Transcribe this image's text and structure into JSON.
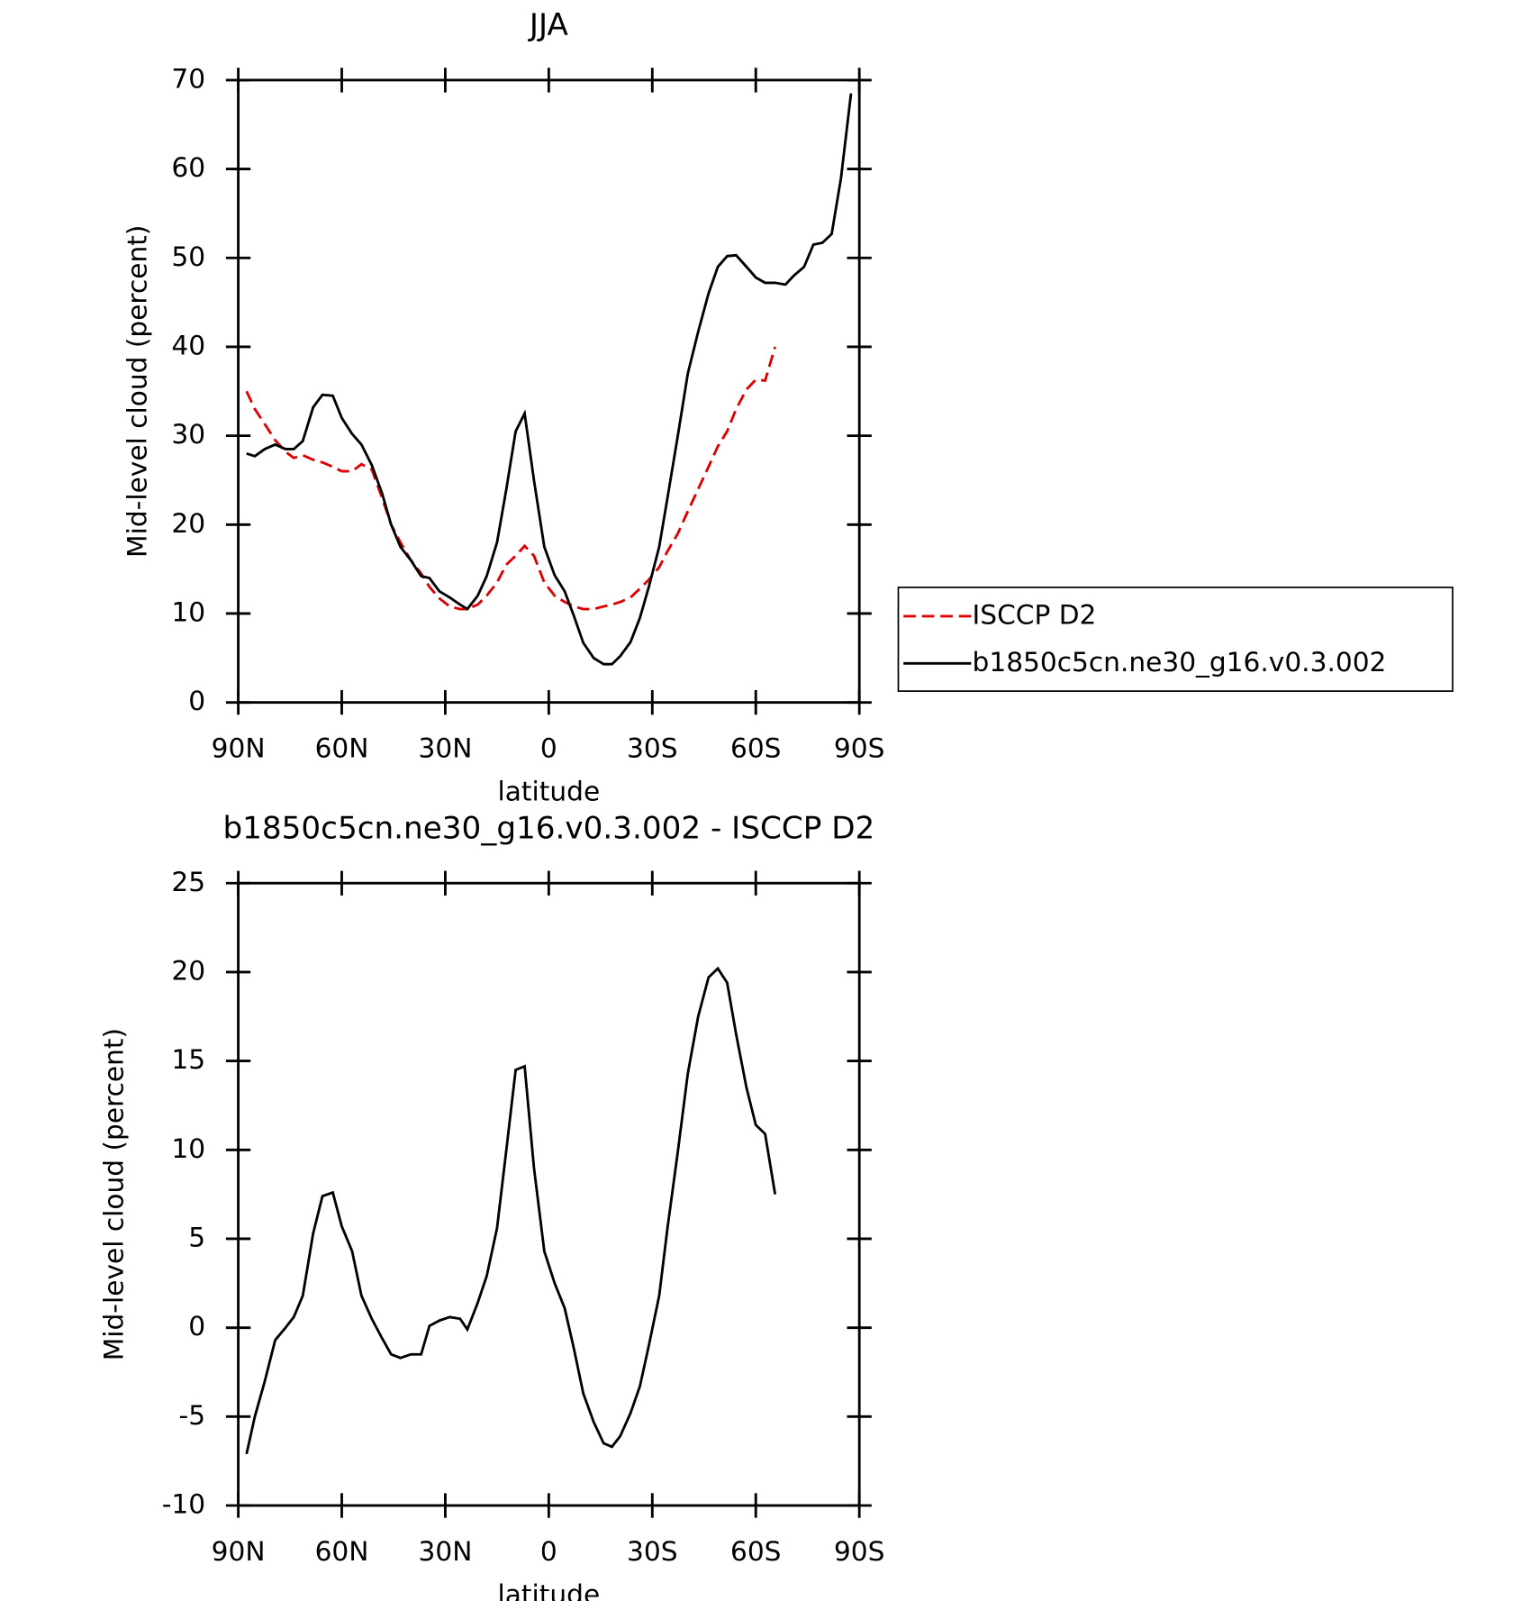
{
  "chart_data": [
    {
      "type": "line",
      "title": "JJA",
      "x_label": "latitude",
      "y_label": "Mid-level cloud (percent)",
      "x": [
        87.6,
        85.2,
        82.3,
        79.3,
        76.3,
        73.9,
        71.3,
        68.3,
        65.6,
        62.6,
        60,
        57,
        54.3,
        51.3,
        48.3,
        45.7,
        43,
        40,
        37,
        34.6,
        31.7,
        28.7,
        25.7,
        23.6,
        20.6,
        18,
        15,
        12.3,
        9.6,
        7,
        4.3,
        1.3,
        -1.7,
        -4.6,
        -7.3,
        -10,
        -13,
        -15.9,
        -18.3,
        -20.7,
        -23.7,
        -26.4,
        -29,
        -32,
        -34.4,
        -37.4,
        -40.3,
        -43.3,
        -46.3,
        -49,
        -51.7,
        -54.3,
        -57.3,
        -60,
        -62.7,
        -65.6,
        -68.6,
        -71,
        -74,
        -76.7,
        -79.3,
        -82,
        -84.7,
        -87.6
      ],
      "series": [
        {
          "name": "ISCCP D2",
          "color": "#e00000",
          "dashed": true,
          "values": [
            35,
            33,
            31.3,
            29.5,
            28.2,
            27.5,
            27.8,
            27.3,
            27,
            26.5,
            26,
            26,
            26.8,
            26.2,
            23,
            20,
            18,
            16,
            14.5,
            13,
            11.7,
            10.8,
            10.5,
            10.5,
            11,
            12,
            13.5,
            15.5,
            16.5,
            17.6,
            16.5,
            13.5,
            12,
            11.3,
            10.8,
            10.5,
            10.5,
            10.8,
            11,
            11.3,
            11.8,
            12.8,
            13.8,
            15.2,
            17,
            19,
            21.5,
            24,
            26.5,
            28.8,
            30.5,
            33,
            35.2,
            36.3,
            36.2,
            40,
            null,
            null,
            null,
            null,
            null,
            null,
            null,
            null
          ]
        },
        {
          "name": "b1850c5cn.ne30_g16.v0.3.002",
          "color": "#000000",
          "dashed": false,
          "values": [
            28,
            27.7,
            28.5,
            29,
            28.5,
            28.5,
            29.4,
            33.2,
            34.6,
            34.5,
            32,
            30.2,
            29,
            26.7,
            23.5,
            20,
            17.5,
            16,
            14.2,
            14,
            12.5,
            11.8,
            11,
            10.5,
            12,
            14.2,
            18,
            24,
            30.5,
            32.5,
            25,
            17.5,
            14.3,
            12.5,
            9.7,
            6.7,
            5,
            4.3,
            4.3,
            5.2,
            6.8,
            9.5,
            13,
            17.5,
            23,
            30,
            37,
            41.7,
            46,
            49,
            50.2,
            50.3,
            49,
            47.8,
            47.2,
            47.2,
            47,
            48,
            49,
            51.5,
            51.7,
            52.7,
            59,
            68.5
          ]
        }
      ],
      "xlim": [
        90,
        -90
      ],
      "xticks": [
        {
          "value": 90,
          "label": "90N"
        },
        {
          "value": 60,
          "label": "60N"
        },
        {
          "value": 30,
          "label": "30N"
        },
        0,
        {
          "value": -30,
          "label": "30S"
        },
        {
          "value": -60,
          "label": "60S"
        },
        {
          "value": -90,
          "label": "90S"
        }
      ],
      "ylim": [
        0,
        70
      ],
      "yticks": [
        0,
        10,
        20,
        30,
        40,
        50,
        60,
        70
      ]
    },
    {
      "type": "line",
      "title": "b1850c5cn.ne30_g16.v0.3.002 - ISCCP D2",
      "x_label": "latitude",
      "y_label": "Mid-level cloud (percent)",
      "x": [
        87.6,
        85.2,
        82.3,
        79.3,
        76.3,
        73.9,
        71.3,
        68.3,
        65.6,
        62.6,
        60,
        57,
        54.3,
        51.3,
        48.3,
        45.7,
        43,
        40,
        37,
        34.6,
        31.7,
        28.7,
        25.7,
        23.6,
        20.6,
        18,
        15,
        12.3,
        9.6,
        7,
        4.3,
        1.3,
        -1.7,
        -4.6,
        -7.3,
        -10,
        -13,
        -15.9,
        -18.3,
        -20.7,
        -23.7,
        -26.4,
        -29,
        -32,
        -34.4,
        -37.4,
        -40.3,
        -43.3,
        -46.3,
        -49,
        -51.7,
        -54.3,
        -57.3,
        -60,
        -62.7,
        -65.6
      ],
      "series": [
        {
          "color": "#000000",
          "dashed": false,
          "values": [
            -7.1,
            -5,
            -3,
            -0.7,
            0,
            0.6,
            1.8,
            5.3,
            7.4,
            7.6,
            5.7,
            4.3,
            1.8,
            0.5,
            -0.6,
            -1.5,
            -1.7,
            -1.5,
            -1.5,
            0.1,
            0.4,
            0.6,
            0.5,
            -0.1,
            1.4,
            2.9,
            5.6,
            10,
            14.5,
            14.7,
            9,
            4.3,
            2.5,
            1.1,
            -1.2,
            -3.7,
            -5.3,
            -6.5,
            -6.7,
            -6.1,
            -4.8,
            -3.3,
            -1,
            1.8,
            5.6,
            9.9,
            14.3,
            17.5,
            19.7,
            20.2,
            19.4,
            16.5,
            13.5,
            11.4,
            10.9,
            7.5
          ]
        }
      ],
      "xlim": [
        90,
        -90
      ],
      "xticks": [
        {
          "value": 90,
          "label": "90N"
        },
        {
          "value": 60,
          "label": "60N"
        },
        {
          "value": 30,
          "label": "30N"
        },
        0,
        {
          "value": -30,
          "label": "30S"
        },
        {
          "value": -60,
          "label": "60S"
        },
        {
          "value": -90,
          "label": "90S"
        }
      ],
      "ylim": [
        -10,
        25
      ],
      "yticks": [
        -10,
        -5,
        0,
        5,
        10,
        15,
        20,
        25
      ]
    }
  ]
}
